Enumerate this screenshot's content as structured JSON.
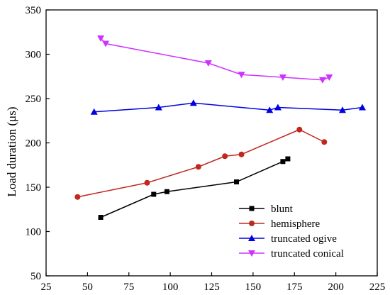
{
  "chart_data": {
    "type": "line",
    "title": "",
    "xlabel": "",
    "ylabel": "Load duration (μs)",
    "xlim": [
      25,
      225
    ],
    "ylim": [
      50,
      350
    ],
    "xticks": [
      25,
      50,
      75,
      100,
      125,
      150,
      175,
      200,
      225
    ],
    "yticks": [
      50,
      100,
      150,
      200,
      250,
      300,
      350
    ],
    "grid": false,
    "legend_position": "bottom-right",
    "series": [
      {
        "name": "blunt",
        "color": "#000000",
        "marker": "square",
        "x": [
          58,
          90,
          98,
          140,
          168,
          171
        ],
        "y": [
          116,
          142,
          145,
          156,
          179,
          182
        ]
      },
      {
        "name": "hemisphere",
        "color": "#c0281e",
        "marker": "circle",
        "x": [
          44,
          86,
          117,
          133,
          143,
          178,
          193
        ],
        "y": [
          139,
          155,
          173,
          185,
          187,
          215,
          201
        ]
      },
      {
        "name": "truncated ogive",
        "color": "#0000e0",
        "marker": "triangle-up",
        "x": [
          54,
          93,
          114,
          160,
          165,
          204,
          216
        ],
        "y": [
          235,
          240,
          245,
          237,
          240,
          237,
          240
        ]
      },
      {
        "name": "truncated conical",
        "color": "#cc33ff",
        "marker": "triangle-down",
        "x": [
          58,
          61,
          123,
          143,
          168,
          192,
          196
        ],
        "y": [
          318,
          312,
          290,
          277,
          274,
          271,
          274
        ]
      }
    ]
  }
}
